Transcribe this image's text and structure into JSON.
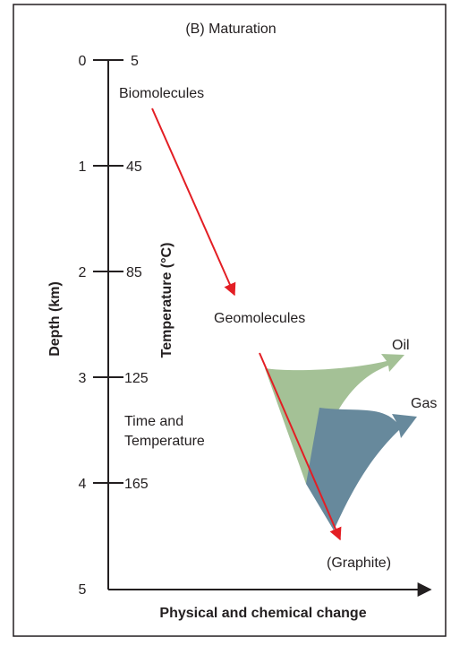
{
  "title": "(B) Maturation",
  "depth_axis": {
    "label": "Depth (km)",
    "ticks": [
      "0",
      "1",
      "2",
      "3",
      "4",
      "5"
    ]
  },
  "temperature_axis": {
    "label": "Temperature (°C)",
    "ticks": [
      "5",
      "45",
      "85",
      "125",
      "165"
    ]
  },
  "x_axis_label": "Physical and chemical change",
  "labels": {
    "biomolecules": "Biomolecules",
    "geomolecules": "Geomolecules",
    "oil": "Oil",
    "gas": "Gas",
    "graphite": "(Graphite)",
    "time_line1": "Time and",
    "time_line2": "Temperature"
  },
  "colors": {
    "arrow_red": "#e31e24",
    "oil_green": "#a4c196",
    "gas_blue": "#67899c",
    "axis": "#231f20"
  }
}
